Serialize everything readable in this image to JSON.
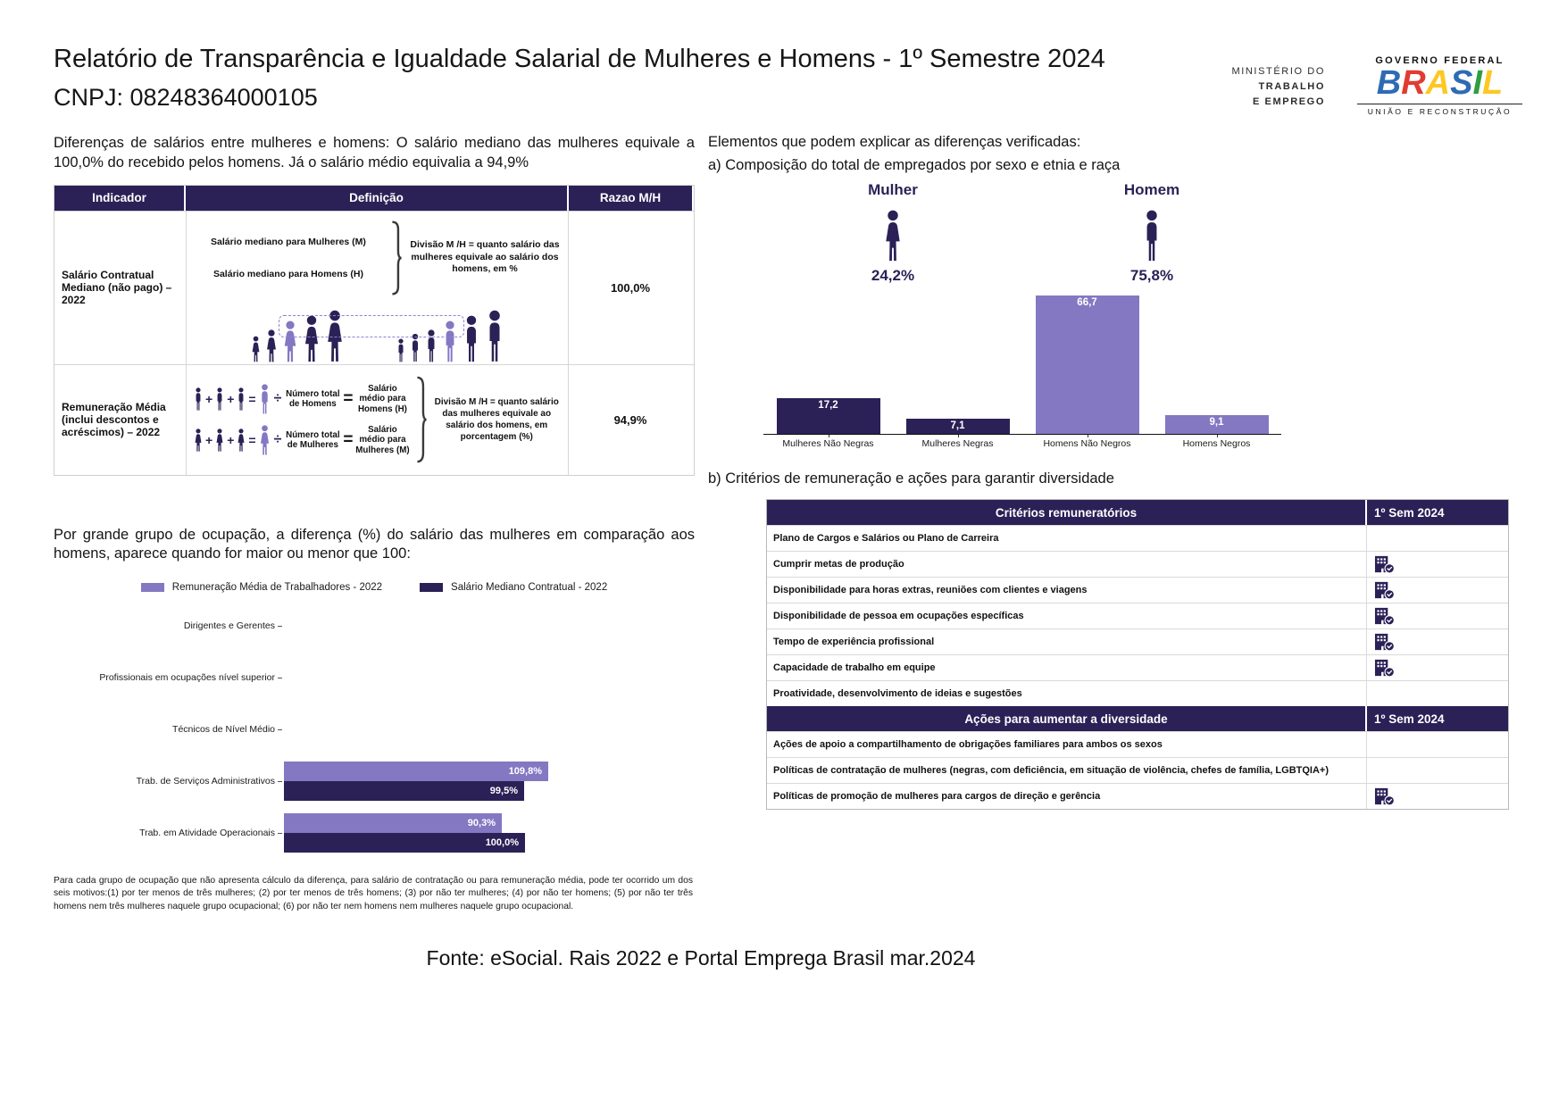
{
  "page": {
    "title": "Relatório de Transparência e Igualdade Salarial de Mulheres e Homens - 1º Semestre 2024",
    "cnpj": "CNPJ: 08248364000105"
  },
  "branding": {
    "ministry_lines": [
      "MINISTÉRIO DO",
      "TRABALHO",
      "E EMPREGO"
    ],
    "gov_top": "GOVERNO FEDERAL",
    "gov_name_letters": [
      "B",
      "R",
      "A",
      "S",
      "I",
      "L"
    ],
    "gov_bottom": "UNIÃO E RECONSTRUÇÃO"
  },
  "colors": {
    "dark_purple": "#2B2156",
    "light_purple": "#8478C2"
  },
  "left": {
    "intro": "Diferenças de salários entre mulheres e homens: O salário mediano das mulheres equivale a 100,0% do recebido pelos homens. Já o salário médio equivalia a 94,9%",
    "indicator_table": {
      "headers": [
        "Indicador",
        "Definição",
        "Razao M/H"
      ],
      "row1": {
        "indicator": "Salário Contratual Mediano (não pago) – 2022",
        "line_women": "Salário mediano para Mulheres (M)",
        "line_men": "Salário mediano para Homens (H)",
        "note": "Divisão M /H = quanto salário das mulheres equivale ao salário dos homens, em %",
        "ratio": "100,0%"
      },
      "row2": {
        "indicator": "Remuneração Média (inclui descontos e acréscimos) – 2022",
        "plus": "+",
        "equals": "=",
        "divide": "÷",
        "men_count": "Número total de Homens",
        "men_avg": "Salário médio para Homens (H)",
        "women_count": "Número total de Mulheres",
        "women_avg": "Salário médio para Mulheres (M)",
        "note": "Divisão M /H = quanto salário das mulheres equivale ao salário dos homens, em porcentagem (%)",
        "ratio": "94,9%"
      }
    },
    "occupation_intro": "Por grande grupo de ocupação, a diferença (%) do salário das mulheres em comparação aos homens, aparece quando for maior ou menor que 100:",
    "footnote": "Para cada grupo de ocupação que não apresenta cálculo da diferença, para salário de contratação ou para remuneração média, pode ter ocorrido um dos seis motivos:(1) por ter menos de três mulheres; (2) por ter menos de três homens; (3) por não ter mulheres; (4) por não ter homens; (5) por não ter três homens nem três mulheres naquele grupo ocupacional; (6) por não ter nem homens nem mulheres naquele grupo ocupacional."
  },
  "right": {
    "elements_title": "Elementos que podem explicar as diferenças verificadas:",
    "section_a": "a) Composição do total de empregados por sexo e etnia e raça",
    "section_b": "b) Critérios de remuneração e ações para garantir diversidade",
    "criteria_table": {
      "header": "Critérios remuneratórios",
      "period": "1º Sem 2024",
      "rows": [
        {
          "label": "Plano de Cargos e Salários ou Plano de Carreira",
          "checked": false
        },
        {
          "label": "Cumprir metas de produção",
          "checked": true
        },
        {
          "label": "Disponibilidade para horas extras, reuniões com clientes e viagens",
          "checked": true
        },
        {
          "label": "Disponibilidade de pessoa em ocupações específicas",
          "checked": true
        },
        {
          "label": "Tempo de experiência profissional",
          "checked": true
        },
        {
          "label": "Capacidade de trabalho em equipe",
          "checked": true
        },
        {
          "label": "Proatividade, desenvolvimento de ideias e sugestões",
          "checked": false
        }
      ]
    },
    "diversity_table": {
      "header": "Ações para aumentar a diversidade",
      "period": "1º Sem 2024",
      "rows": [
        {
          "label": "Ações de apoio a compartilhamento de obrigações familiares para ambos os sexos",
          "checked": false
        },
        {
          "label": "Políticas de contratação de mulheres (negras, com deficiência, em situação de violência, chefes de família, LGBTQIA+)",
          "checked": false
        },
        {
          "label": "Políticas de promoção de mulheres para cargos de direção e gerência",
          "checked": true
        }
      ]
    }
  },
  "chart_data": [
    {
      "id": "composition",
      "type": "bar",
      "title": "a) Composição do total de empregados por sexo e etnia e raça",
      "categories": [
        "Mulheres Não Negras",
        "Mulheres Negras",
        "Homens Não Negros",
        "Homens Negros"
      ],
      "values": [
        17.2,
        7.1,
        66.7,
        9.1
      ],
      "labels": [
        "17,2",
        "7,1",
        "66,7",
        "9,1"
      ],
      "bar_colors": [
        "#2B2156",
        "#2B2156",
        "#8478C2",
        "#8478C2"
      ],
      "groups": [
        {
          "label": "Mulher",
          "value": "24,2%"
        },
        {
          "label": "Homem",
          "value": "75,8%"
        }
      ],
      "ylim": [
        0,
        70
      ],
      "grid": false,
      "legend_position": "none"
    },
    {
      "id": "occupation",
      "type": "bar",
      "orientation": "horizontal",
      "categories": [
        "Dirigentes e Gerentes",
        "Profissionais em ocupações nível superior",
        "Técnicos de Nível Médio",
        "Trab. de Serviços Administrativos",
        "Trab. em Atividade Operacionais"
      ],
      "series": [
        {
          "name": "Remuneração Média de Trabalhadores - 2022",
          "color": "#8478C2",
          "values": [
            null,
            null,
            null,
            109.8,
            90.3
          ],
          "labels": [
            null,
            null,
            null,
            "109,8%",
            "90,3%"
          ]
        },
        {
          "name": "Salário Mediano Contratual - 2022",
          "color": "#2B2156",
          "values": [
            null,
            null,
            null,
            99.5,
            100.0
          ],
          "labels": [
            null,
            null,
            null,
            "99,5%",
            "100,0%"
          ]
        }
      ],
      "xlim": [
        0,
        110
      ],
      "grid": false,
      "legend_position": "top"
    }
  ],
  "footer": {
    "source": "Fonte: eSocial. Rais 2022 e Portal Emprega Brasil mar.2024"
  }
}
